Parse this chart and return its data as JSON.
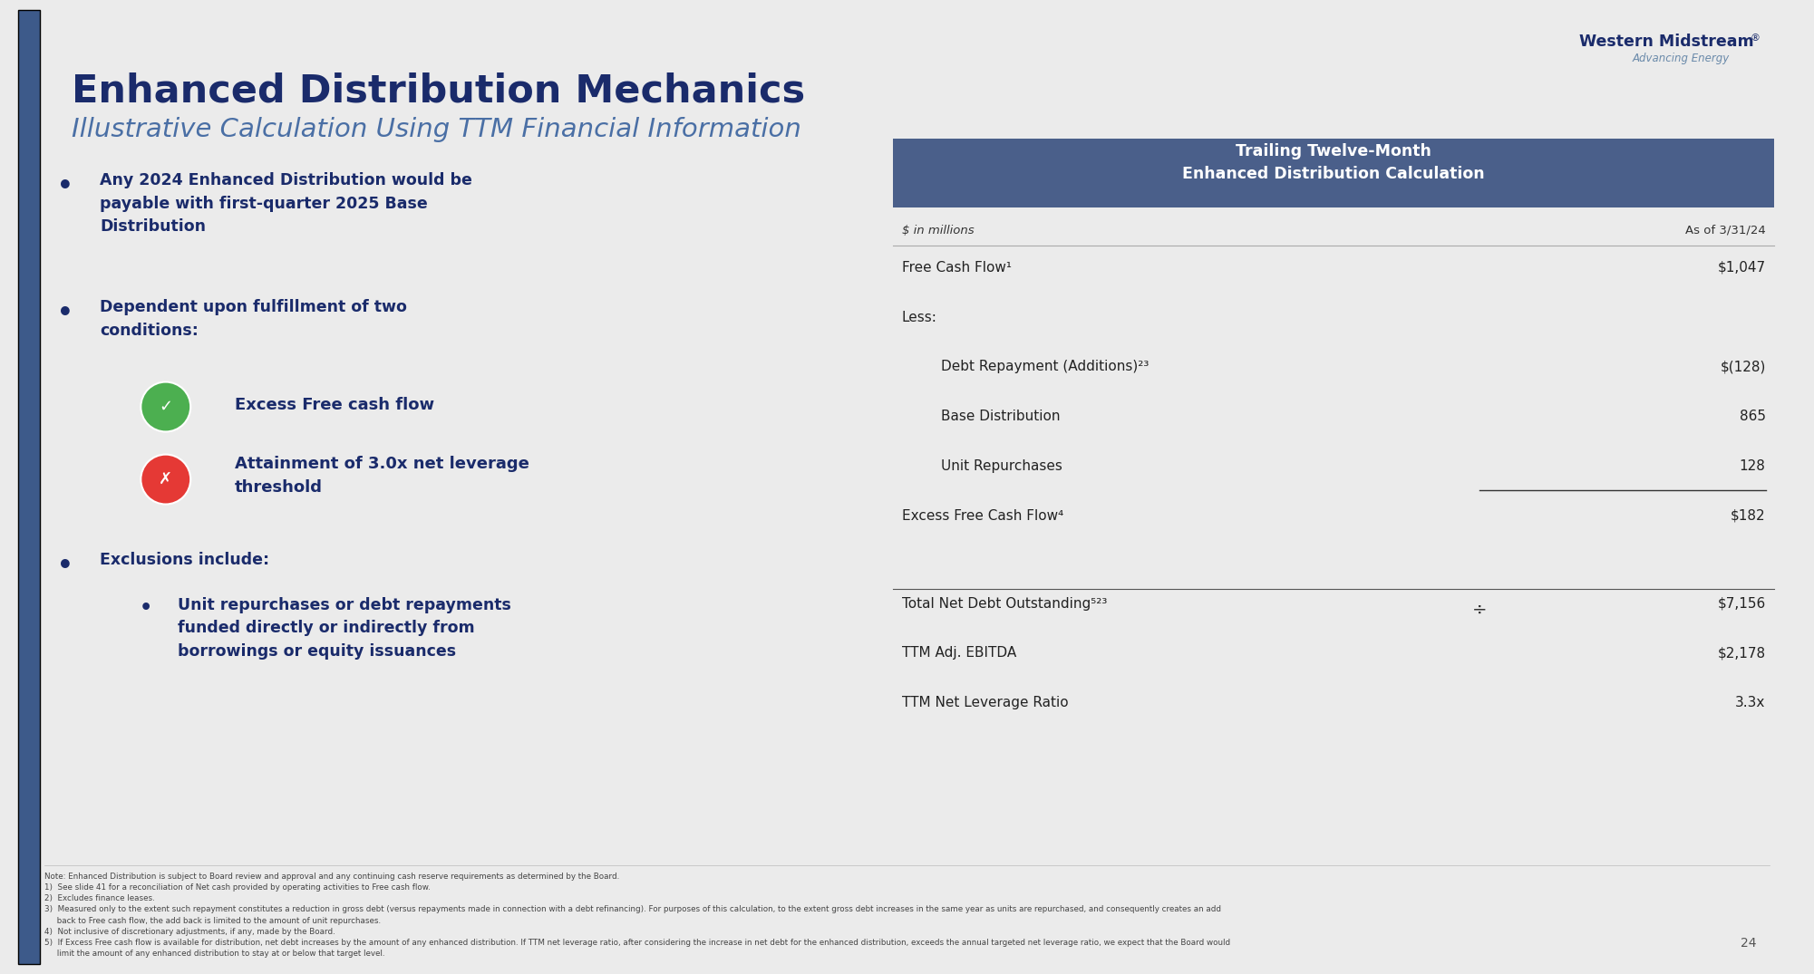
{
  "bg_color": "#ebebeb",
  "slide_bg": "#ffffff",
  "title1": "Enhanced Distribution Mechanics",
  "title2": "Illustrative Calculation Using TTM Financial Information",
  "title1_color": "#1a2b6b",
  "title2_color": "#4a6fa5",
  "left_bar_color": "#3d5a8a",
  "bullet_color": "#1a2b6b",
  "table_header_bg": "#4a5f8a",
  "table_header_text": "#ffffff",
  "table_col_header_left": "$ in millions",
  "table_col_header_right": "As of 3/31/24",
  "table_rows": [
    {
      "label": "Free Cash Flow¹",
      "value": "$1,047",
      "indent": 0,
      "underline_below": false
    },
    {
      "label": "Less:",
      "value": "",
      "indent": 0,
      "underline_below": false
    },
    {
      "label": "Debt Repayment (Additions)²³",
      "value": "$(128)",
      "indent": 1,
      "underline_below": false
    },
    {
      "label": "Base Distribution",
      "value": "865",
      "indent": 1,
      "underline_below": false
    },
    {
      "label": "Unit Repurchases",
      "value": "128",
      "indent": 1,
      "underline_below": true
    },
    {
      "label": "Excess Free Cash Flow⁴",
      "value": "$182",
      "indent": 0,
      "underline_below": false
    }
  ],
  "table_rows2": [
    {
      "label": "Total Net Debt Outstanding⁵²³",
      "value": "$7,156",
      "has_divider": true
    },
    {
      "label": "TTM Adj. EBITDA",
      "value": "$2,178",
      "has_divider": false
    },
    {
      "label": "TTM Net Leverage Ratio",
      "value": "3.3x",
      "has_divider": false
    }
  ],
  "footnotes": [
    "Note: Enhanced Distribution is subject to Board review and approval and any continuing cash reserve requirements as determined by the Board.",
    "1)  See slide 41 for a reconciliation of Net cash provided by operating activities to Free cash flow.",
    "2)  Excludes finance leases.",
    "3)  Measured only to the extent such repayment constitutes a reduction in gross debt (versus repayments made in connection with a debt refinancing). For purposes of this calculation, to the extent gross debt increases in the same year as units are repurchased, and consequently creates an add",
    "     back to Free cash flow, the add back is limited to the amount of unit repurchases.",
    "4)  Not inclusive of discretionary adjustments, if any, made by the Board.",
    "5)  If Excess Free cash flow is available for distribution, net debt increases by the amount of any enhanced distribution. If TTM net leverage ratio, after considering the increase in net debt for the enhanced distribution, exceeds the annual targeted net leverage ratio, we expect that the Board would",
    "     limit the amount of any enhanced distribution to stay at or below that target level."
  ],
  "page_number": "24",
  "green_check_color": "#4caf50",
  "red_x_color": "#e53935"
}
